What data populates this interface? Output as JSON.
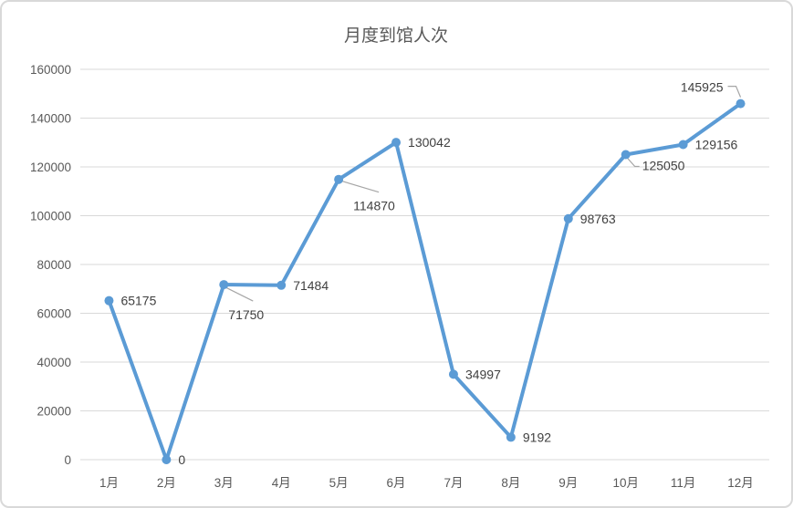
{
  "chart_data": {
    "type": "line",
    "title": "月度到馆人次",
    "categories": [
      "1月",
      "2月",
      "3月",
      "4月",
      "5月",
      "6月",
      "7月",
      "8月",
      "9月",
      "10月",
      "11月",
      "12月"
    ],
    "values": [
      65175,
      0,
      71750,
      71484,
      114870,
      130042,
      34997,
      9192,
      98763,
      125050,
      129156,
      145925
    ],
    "data_labels": [
      "65175",
      "0",
      "71750",
      "71484",
      "114870",
      "130042",
      "34997",
      "9192",
      "98763",
      "125050",
      "129156",
      "145925"
    ],
    "xlabel": "",
    "ylabel": "",
    "ylim": [
      0,
      160000
    ],
    "ytick_step": 20000,
    "ytick_labels": [
      "0",
      "20000",
      "40000",
      "60000",
      "80000",
      "100000",
      "120000",
      "140000",
      "160000"
    ],
    "grid": true,
    "legend": "none",
    "colors": {
      "line": "#5B9BD5",
      "marker": "#5B9BD5",
      "gridline": "#D9D9D9",
      "axis_line": "#D9D9D9",
      "axis_text": "#595959",
      "data_label_text": "#404040",
      "title_text": "#595959",
      "leader_line": "#A6A6A6",
      "frame_border": "#D9D9D9"
    }
  }
}
